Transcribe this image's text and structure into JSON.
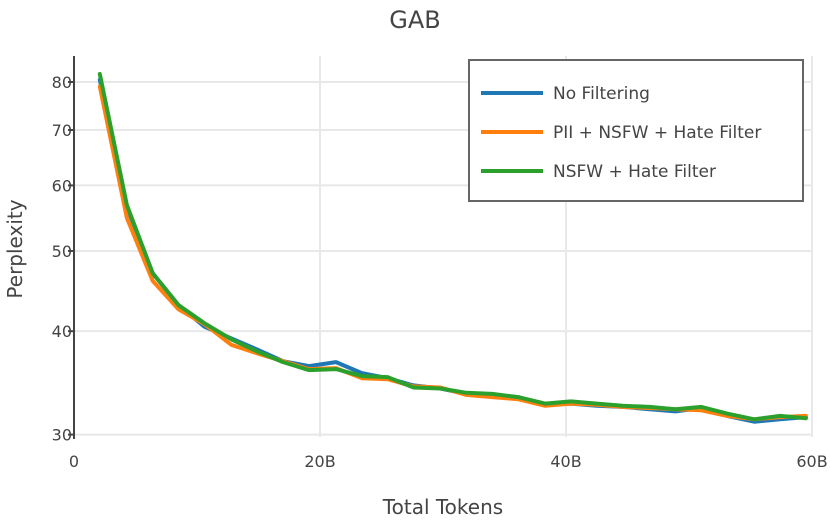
{
  "chart_data": {
    "type": "line",
    "title": "GAB",
    "xlabel": "Total Tokens",
    "ylabel": "Perplexity",
    "x_axis": {
      "range": [
        0,
        60
      ],
      "ticks": [
        0,
        20,
        40,
        60
      ],
      "tick_labels": [
        "0",
        "20B",
        "40B",
        "60B"
      ],
      "unit": "billion tokens"
    },
    "y_axis": {
      "scale": "log",
      "range": [
        29.8,
        86
      ],
      "ticks": [
        30,
        40,
        50,
        60,
        70,
        80
      ],
      "tick_labels": [
        "30",
        "40",
        "50",
        "60",
        "70",
        "80"
      ]
    },
    "grid": true,
    "legend_position": "top-right",
    "series": [
      {
        "name": "No Filtering",
        "color": "#1f77b4",
        "x": [
          2.1,
          4.3,
          6.4,
          8.5,
          10.6,
          12.8,
          14.9,
          17.0,
          19.1,
          21.3,
          23.4,
          25.5,
          27.6,
          29.8,
          31.9,
          34.0,
          36.1,
          38.3,
          40.4,
          42.5,
          44.6,
          46.8,
          48.9,
          51.0,
          53.1,
          55.3,
          57.4,
          59.5
        ],
        "y": [
          80.5,
          56.5,
          47.0,
          43.0,
          40.5,
          39.2,
          38.0,
          36.8,
          36.3,
          36.7,
          35.6,
          35.1,
          34.4,
          34.1,
          33.6,
          33.5,
          33.3,
          32.6,
          32.7,
          32.5,
          32.4,
          32.2,
          32.0,
          32.3,
          31.6,
          31.1,
          31.3,
          31.5
        ]
      },
      {
        "name": "PII + NSFW + Hate Filter",
        "color": "#ff7f0e",
        "x": [
          2.1,
          4.3,
          6.4,
          8.5,
          10.6,
          12.8,
          14.9,
          17.0,
          19.1,
          21.3,
          23.4,
          25.5,
          27.6,
          29.8,
          31.9,
          34.0,
          36.1,
          38.3,
          40.4,
          42.5,
          44.6,
          46.8,
          48.9,
          51.0,
          53.1,
          55.3,
          57.4,
          59.5
        ],
        "y": [
          79.0,
          54.8,
          46.0,
          42.5,
          40.8,
          38.5,
          37.6,
          36.8,
          36.0,
          36.1,
          35.1,
          35.0,
          34.3,
          34.2,
          33.5,
          33.3,
          33.1,
          32.5,
          32.7,
          32.6,
          32.4,
          32.3,
          32.2,
          32.1,
          31.6,
          31.3,
          31.5,
          31.6
        ]
      },
      {
        "name": "NSFW + Hate Filter",
        "color": "#2ca02c",
        "x": [
          2.1,
          4.3,
          6.4,
          8.5,
          10.6,
          12.8,
          14.9,
          17.0,
          19.1,
          21.3,
          23.4,
          25.5,
          27.6,
          29.8,
          31.9,
          34.0,
          36.1,
          38.3,
          40.4,
          42.5,
          44.6,
          46.8,
          48.9,
          51.0,
          53.1,
          55.3,
          57.4,
          59.5
        ],
        "y": [
          81.8,
          56.8,
          47.0,
          43.0,
          40.9,
          39.1,
          37.8,
          36.7,
          35.9,
          36.0,
          35.3,
          35.2,
          34.2,
          34.1,
          33.7,
          33.6,
          33.3,
          32.7,
          32.9,
          32.7,
          32.5,
          32.4,
          32.2,
          32.4,
          31.8,
          31.3,
          31.6,
          31.4
        ]
      }
    ]
  }
}
